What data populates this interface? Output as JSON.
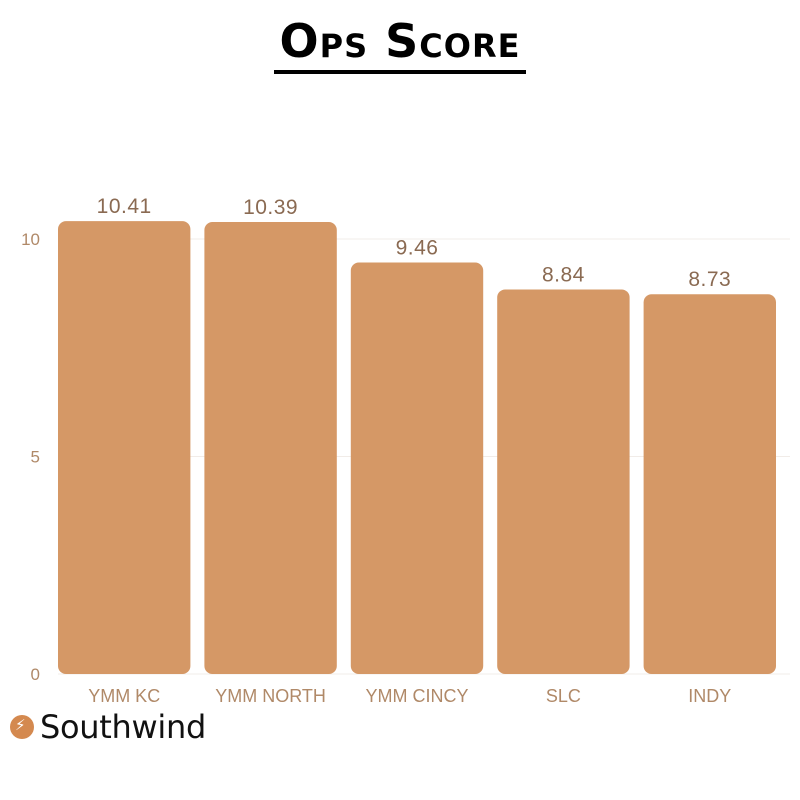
{
  "title": "Ops Score",
  "brand": {
    "name": "Southwind",
    "icon": "bolt-icon",
    "color": "#d4894f"
  },
  "chart_data": {
    "type": "bar",
    "title": "Ops Score",
    "categories": [
      "YMM KC",
      "YMM NORTH",
      "YMM CINCY",
      "SLC",
      "INDY"
    ],
    "values": [
      10.41,
      10.39,
      9.46,
      8.84,
      8.73
    ],
    "value_labels": [
      "10.41",
      "10.39",
      "9.46",
      "8.84",
      "8.73"
    ],
    "yticks": [
      0,
      5,
      10
    ],
    "ylim": [
      0,
      10.9
    ],
    "xlabel": "",
    "ylabel": "",
    "grid": true,
    "bar_color": "#d59866"
  }
}
